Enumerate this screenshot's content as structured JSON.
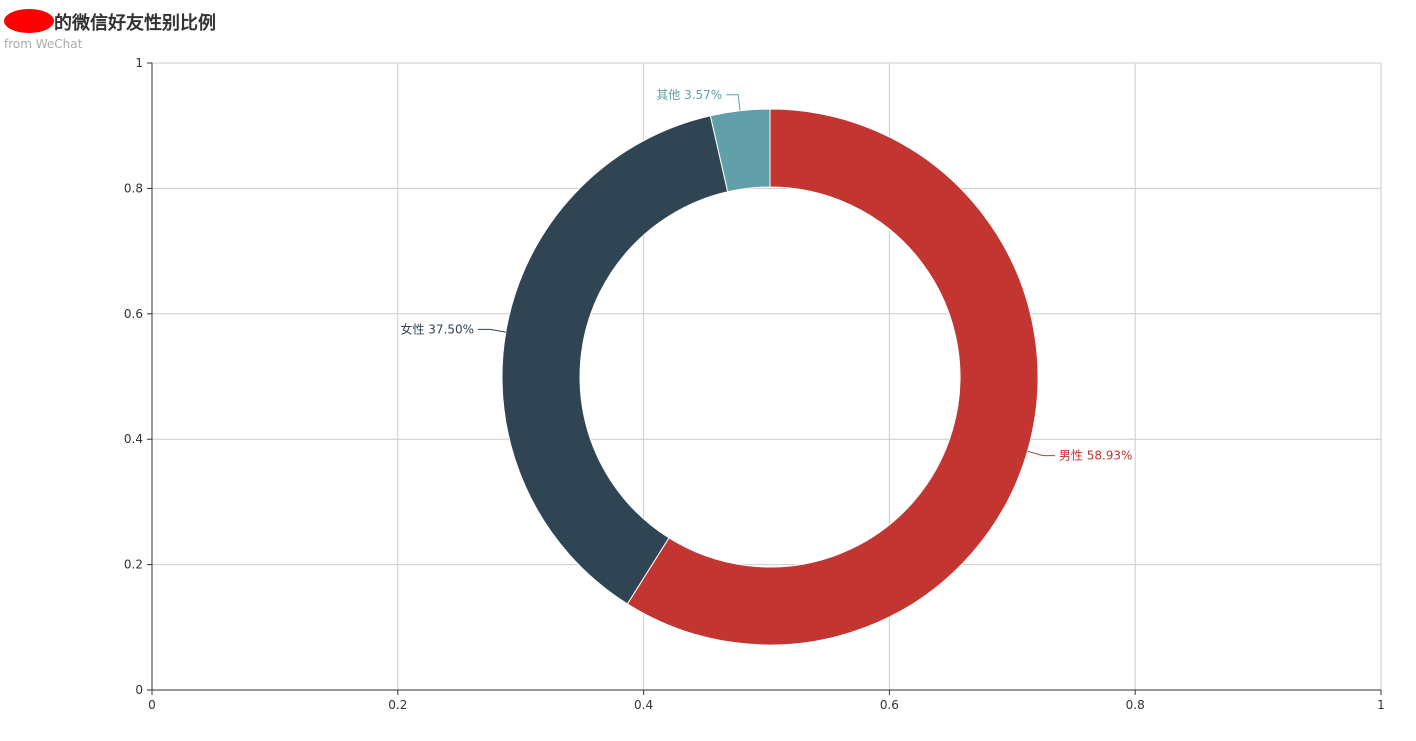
{
  "header": {
    "title": "的微信好友性别比例",
    "subtitle": "from WeChat"
  },
  "chart_data": {
    "type": "pie",
    "donut": true,
    "title": "的微信好友性别比例",
    "subtitle": "from WeChat",
    "slices": [
      {
        "name": "男性",
        "value": 58.93,
        "label": "男性 58.93%",
        "color": "#c23531"
      },
      {
        "name": "女性",
        "value": 37.5,
        "label": "女性 37.50%",
        "color": "#2f4554"
      },
      {
        "name": "其他",
        "value": 3.57,
        "label": "其他 3.57%",
        "color": "#61a0a8"
      }
    ],
    "xlim": [
      0,
      1
    ],
    "ylim": [
      0,
      1
    ],
    "xticks": [
      "0",
      "0.2",
      "0.4",
      "0.6",
      "0.8",
      "1"
    ],
    "yticks": [
      "0",
      "0.2",
      "0.4",
      "0.6",
      "0.8",
      "1"
    ],
    "grid": true
  }
}
